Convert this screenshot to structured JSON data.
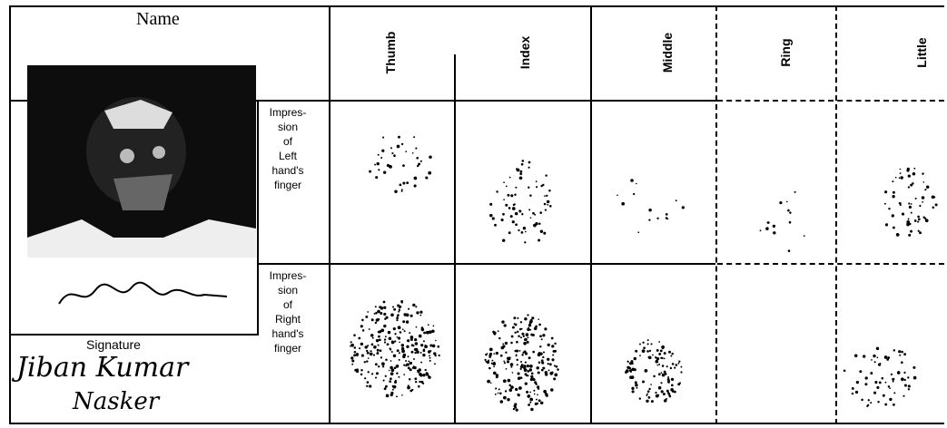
{
  "form": {
    "name_label": "Name",
    "signature_label": "Signature",
    "signature_text_line1": "Jiban Kumar",
    "signature_text_line2": "Nasker",
    "fingers": [
      "Thumb",
      "Index",
      "Middle",
      "Ring",
      "Little"
    ],
    "rows": [
      {
        "label_lines": [
          "Impres-",
          "sion",
          "of",
          "Left",
          "hand's",
          "finger"
        ]
      },
      {
        "label_lines": [
          "Impres-",
          "sion",
          "of",
          "Right",
          "hand's",
          "finger"
        ]
      }
    ]
  }
}
